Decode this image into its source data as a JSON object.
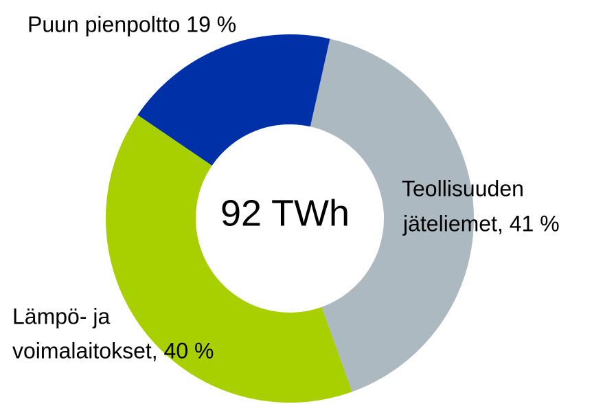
{
  "chart_data": {
    "type": "donut",
    "center_label": "92 TWh",
    "categories": [
      [
        "Teollisuuden",
        "jäteliemet, 41 %"
      ],
      [
        "Lämpö- ja",
        "voimalaitokset, 40 %"
      ],
      [
        "Puun pienpoltto 19 %"
      ]
    ],
    "values": [
      41,
      40,
      19
    ],
    "colors": [
      "#adb9c0",
      "#a8d000",
      "#0030a8"
    ]
  }
}
